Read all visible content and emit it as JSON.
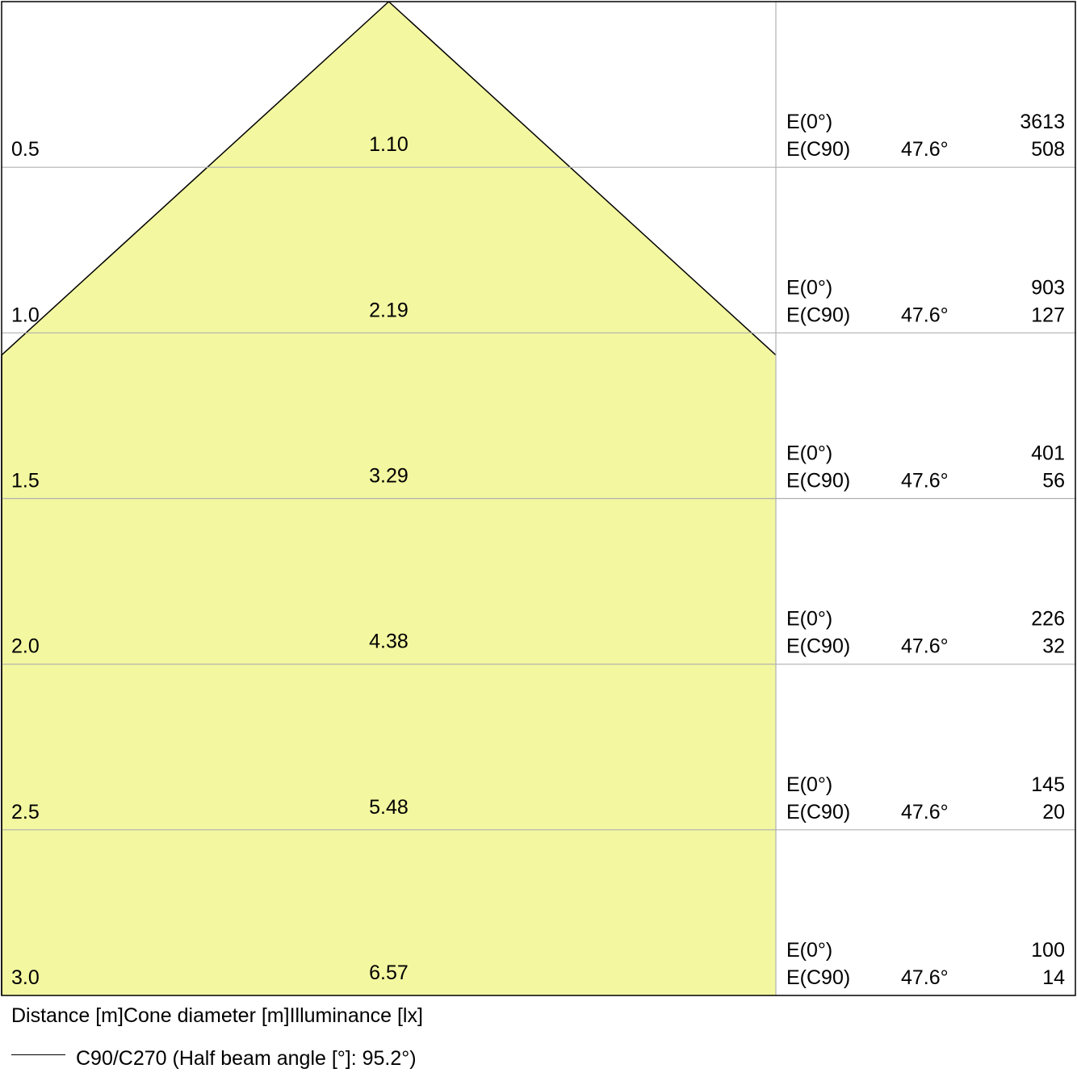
{
  "chart_data": {
    "type": "area",
    "description_axes": {
      "distance_label": "Distance [m]",
      "cone_label": "Cone diameter [m]",
      "illuminance_label": "Illuminance [lx]"
    },
    "rows": [
      {
        "distance": "0.5",
        "cone_diameter": "1.10",
        "e0_label": "E(0°)",
        "e0_value": "3613",
        "ec90_label": "E(C90)",
        "ec90_angle": "47.6°",
        "ec90_value": "508"
      },
      {
        "distance": "1.0",
        "cone_diameter": "2.19",
        "e0_label": "E(0°)",
        "e0_value": "903",
        "ec90_label": "E(C90)",
        "ec90_angle": "47.6°",
        "ec90_value": "127"
      },
      {
        "distance": "1.5",
        "cone_diameter": "3.29",
        "e0_label": "E(0°)",
        "e0_value": "401",
        "ec90_label": "E(C90)",
        "ec90_angle": "47.6°",
        "ec90_value": "56"
      },
      {
        "distance": "2.0",
        "cone_diameter": "4.38",
        "e0_label": "E(0°)",
        "e0_value": "226",
        "ec90_label": "E(C90)",
        "ec90_angle": "47.6°",
        "ec90_value": "32"
      },
      {
        "distance": "2.5",
        "cone_diameter": "5.48",
        "e0_label": "E(0°)",
        "e0_value": "145",
        "ec90_label": "E(C90)",
        "ec90_angle": "47.6°",
        "ec90_value": "20"
      },
      {
        "distance": "3.0",
        "cone_diameter": "6.57",
        "e0_label": "E(0°)",
        "e0_value": "100",
        "ec90_label": "E(C90)",
        "ec90_angle": "47.6°",
        "ec90_value": "14"
      }
    ],
    "legend": {
      "series_label": "C90/C270 (Half beam angle [°]: 95.2°)",
      "half_beam_angle_deg": 95.2
    },
    "colors": {
      "cone_fill": "#f3f7a0",
      "cone_stroke": "#000000",
      "grid": "#b0b0b0",
      "frame": "#000000"
    }
  }
}
